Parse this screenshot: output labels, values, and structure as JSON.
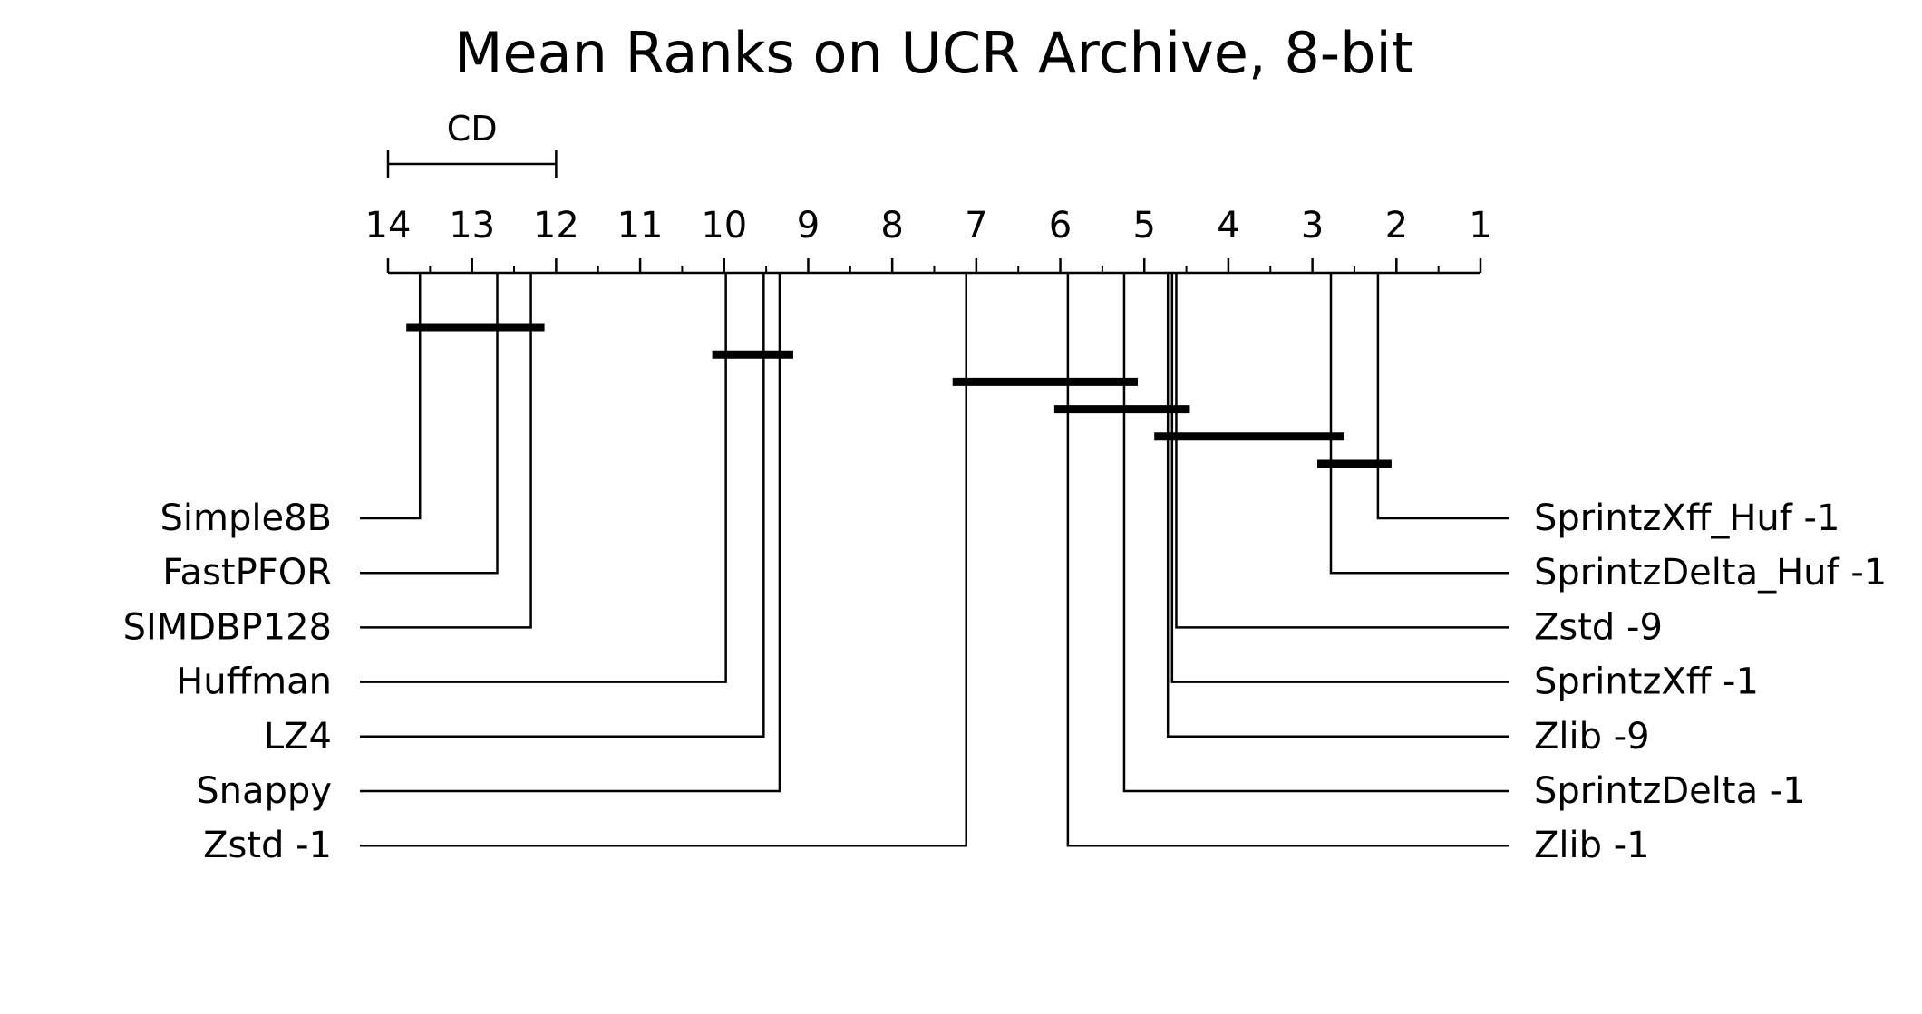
{
  "chart_data": {
    "type": "critical-difference-diagram",
    "title": "Mean Ranks on UCR Archive, 8-bit",
    "cd_label": "CD",
    "cd_value": 2.0,
    "axis": {
      "min": 1,
      "max": 14,
      "reversed": true,
      "tick_labels": [
        "14",
        "13",
        "12",
        "11",
        "10",
        "9",
        "8",
        "7",
        "6",
        "5",
        "4",
        "3",
        "2",
        "1"
      ]
    },
    "left_methods": [
      {
        "name": "Simple8B",
        "rank": 13.62
      },
      {
        "name": "FastPFOR",
        "rank": 12.7
      },
      {
        "name": "SIMDBP128",
        "rank": 12.3
      },
      {
        "name": "Huffman",
        "rank": 9.98
      },
      {
        "name": "LZ4",
        "rank": 9.53
      },
      {
        "name": "Snappy",
        "rank": 9.34
      },
      {
        "name": "Zstd -1",
        "rank": 7.12
      }
    ],
    "right_methods": [
      {
        "name": "SprintzXff_Huf -1",
        "rank": 2.22
      },
      {
        "name": "SprintzDelta_Huf -1",
        "rank": 2.78
      },
      {
        "name": "Zstd -9",
        "rank": 4.62
      },
      {
        "name": "SprintzXff -1",
        "rank": 4.67
      },
      {
        "name": "Zlib -9",
        "rank": 4.72
      },
      {
        "name": "SprintzDelta -1",
        "rank": 5.24
      },
      {
        "name": "Zlib -1",
        "rank": 5.91
      }
    ],
    "cliques": [
      {
        "from": 13.62,
        "to": 12.3
      },
      {
        "from": 9.98,
        "to": 9.34
      },
      {
        "from": 7.12,
        "to": 5.24
      },
      {
        "from": 5.91,
        "to": 4.62
      },
      {
        "from": 4.72,
        "to": 2.78
      },
      {
        "from": 2.78,
        "to": 2.22
      }
    ]
  }
}
